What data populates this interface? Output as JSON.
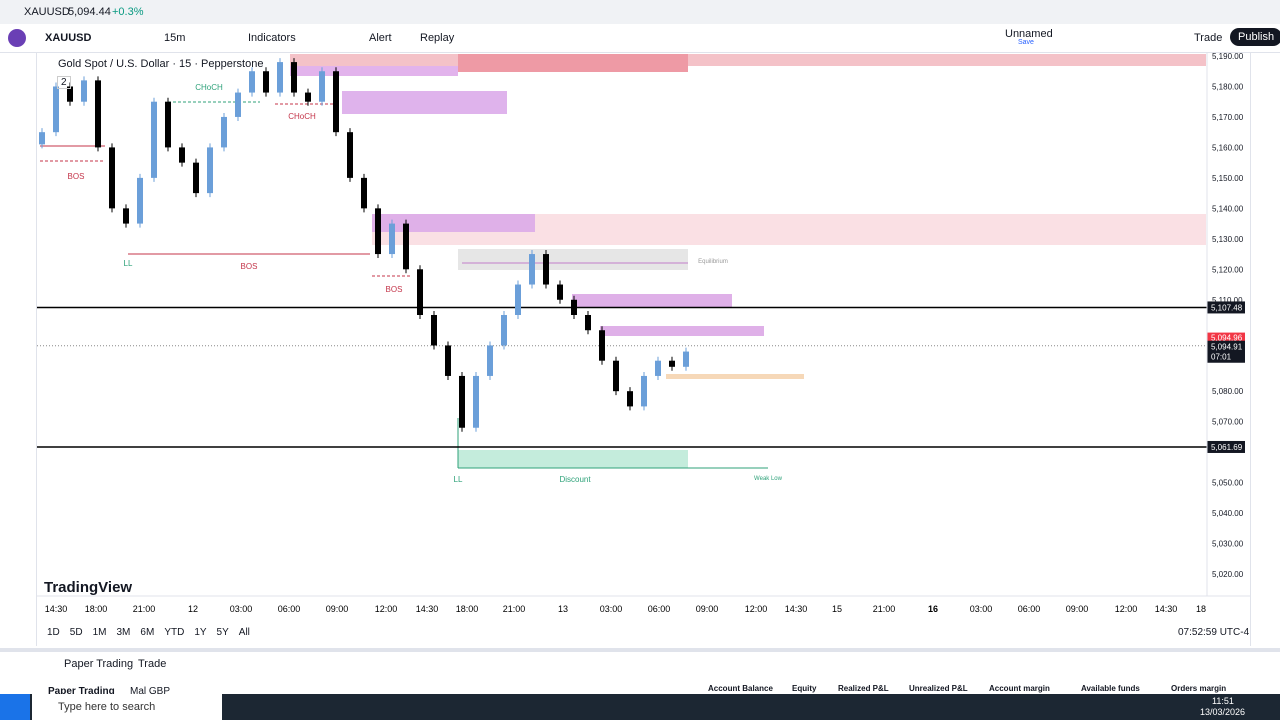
{
  "browser_tab": {
    "symbol": "XAUUSD",
    "price": "5,094.44",
    "change": "+0.3%"
  },
  "toolbar": {
    "symbol": "XAUUSD",
    "interval": "15m",
    "indicators": "Indicators",
    "alert": "Alert",
    "replay": "Replay",
    "layout": "Unnamed",
    "save": "Save",
    "trade": "Trade",
    "publish": "Publish"
  },
  "chart": {
    "legend": "Gold Spot / U.S. Dollar · 15 · Pepperstone",
    "legend_count": "2",
    "annotations": [
      "CHoCH",
      "CHoCH",
      "BOS",
      "LL",
      "BOS",
      "BOS",
      "LL",
      "Equilibrium",
      "Discount",
      "Weak Low"
    ],
    "price_ticks": [
      {
        "value": 5190,
        "label": "5,190.00"
      },
      {
        "value": 5180,
        "label": "5,180.00"
      },
      {
        "value": 5170,
        "label": "5,170.00"
      },
      {
        "value": 5160,
        "label": "5,160.00"
      },
      {
        "value": 5150,
        "label": "5,150.00"
      },
      {
        "value": 5140,
        "label": "5,140.00"
      },
      {
        "value": 5130,
        "label": "5,130.00"
      },
      {
        "value": 5120,
        "label": "5,120.00"
      },
      {
        "value": 5110,
        "label": "5,110.00"
      },
      {
        "value": 5080,
        "label": "5,080.00"
      },
      {
        "value": 5070,
        "label": "5,070.00"
      },
      {
        "value": 5050,
        "label": "5,050.00"
      },
      {
        "value": 5040,
        "label": "5,040.00"
      },
      {
        "value": 5030,
        "label": "5,030.00"
      },
      {
        "value": 5020,
        "label": "5,020.00"
      }
    ],
    "levels": [
      {
        "value": 5107.48,
        "label": "5,107.48"
      },
      {
        "value": 5061.69,
        "label": "5,061.69"
      }
    ],
    "last_price": {
      "value": 5094.91,
      "label": "5,094.91"
    },
    "bid_price": {
      "value": 5094.96,
      "label": "5,094.96"
    },
    "countdown": "07:01",
    "closes": [
      5165,
      5180,
      5175,
      5182,
      5160,
      5140,
      5135,
      5150,
      5175,
      5160,
      5155,
      5145,
      5160,
      5170,
      5178,
      5185,
      5178,
      5188,
      5178,
      5175,
      5185,
      5165,
      5150,
      5140,
      5125,
      5135,
      5120,
      5105,
      5095,
      5085,
      5068,
      5085,
      5095,
      5105,
      5115,
      5125,
      5115,
      5110,
      5105,
      5100,
      5090,
      5080,
      5075,
      5085,
      5090,
      5088,
      5093
    ],
    "time_labels": [
      "14:30",
      "18:00",
      "21:00",
      "12",
      "03:00",
      "06:00",
      "09:00",
      "12:00",
      "14:30",
      "18:00",
      "21:00",
      "13",
      "03:00",
      "06:00",
      "09:00",
      "12:00",
      "14:30",
      "15",
      "21:00",
      "16",
      "03:00",
      "06:00",
      "09:00",
      "12:00",
      "14:30",
      "18"
    ],
    "ranges": [
      "1D",
      "5D",
      "1M",
      "3M",
      "6M",
      "YTD",
      "1Y",
      "5Y",
      "All"
    ],
    "clock": "07:52:59 UTC-4",
    "logo": "TradingView"
  },
  "panel": {
    "tab1": "Paper Trading",
    "tab2": "Trade",
    "account": "Paper Trading",
    "currency": "Mal GBP",
    "columns": [
      "Account Balance",
      "Equity",
      "Realized P&L",
      "Unrealized P&L",
      "Account margin",
      "Available funds",
      "Orders margin"
    ]
  },
  "taskbar": {
    "search": "Type here to search",
    "time": "11:51",
    "date": "13/03/2026"
  }
}
